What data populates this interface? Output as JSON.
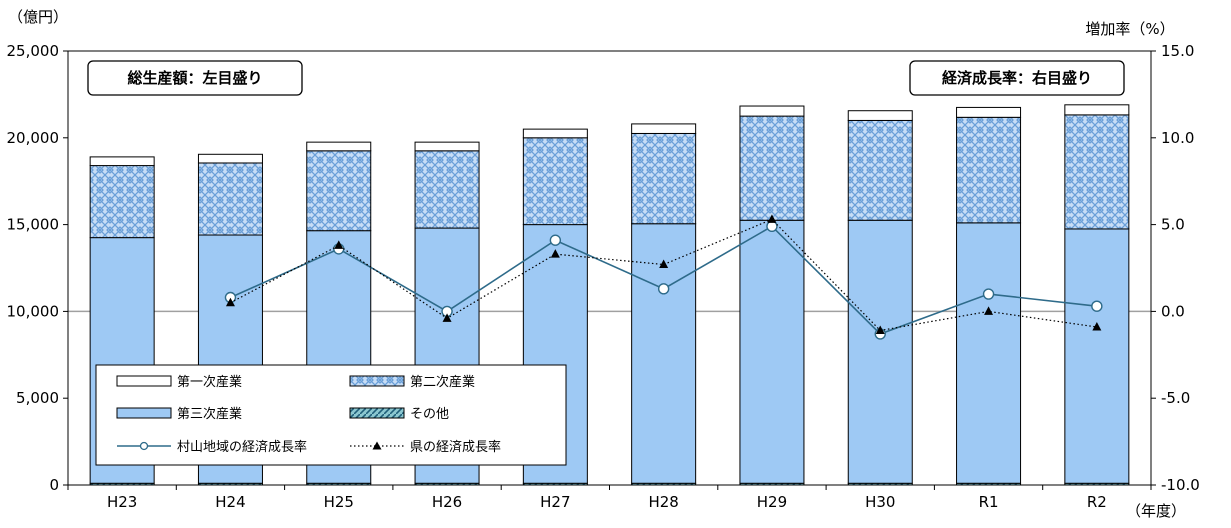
{
  "chart_data": {
    "type": "bar",
    "left_axis_unit": "（億円）",
    "right_axis_label": "増加率（%）",
    "x_unit": "（年度）",
    "categories": [
      "H23",
      "H24",
      "H25",
      "H26",
      "H27",
      "H28",
      "H29",
      "H30",
      "R1",
      "R2"
    ],
    "y_left": {
      "min": 0,
      "max": 25000,
      "step": 5000,
      "tick_labels": [
        "0",
        "5,000",
        "10,000",
        "15,000",
        "20,000",
        "25,000"
      ]
    },
    "y_right": {
      "min": -10.0,
      "max": 15.0,
      "step": 5.0,
      "tick_labels": [
        "-10.0",
        "-5.0",
        "0.0",
        "5.0",
        "10.0",
        "15.0"
      ]
    },
    "annotations": {
      "left_box": "総生産額：左目盛り",
      "right_box": "経済成長率：右目盛り"
    },
    "stack_order": [
      "その他",
      "第三次産業",
      "第二次産業",
      "第一次産業"
    ],
    "series": [
      {
        "name": "第一次産業",
        "kind": "bar",
        "pattern": "white",
        "values": [
          500,
          500,
          500,
          500,
          500,
          550,
          580,
          560,
          570,
          580
        ]
      },
      {
        "name": "第二次産業",
        "kind": "bar",
        "pattern": "crosshatch",
        "values": [
          4150,
          4150,
          4600,
          4450,
          5000,
          5200,
          6000,
          5750,
          6080,
          6570
        ]
      },
      {
        "name": "第三次産業",
        "kind": "bar",
        "pattern": "light-blue",
        "values": [
          14150,
          14300,
          14550,
          14700,
          14900,
          14950,
          15150,
          15150,
          15000,
          14650
        ]
      },
      {
        "name": "その他",
        "kind": "bar",
        "pattern": "diagonal",
        "values": [
          100,
          100,
          100,
          100,
          100,
          100,
          100,
          100,
          100,
          100
        ]
      },
      {
        "name": "村山地域の経済成長率",
        "kind": "line",
        "marker": "circle",
        "color": "#2e6b8a",
        "values": [
          null,
          0.8,
          3.6,
          0.0,
          4.1,
          1.3,
          4.9,
          -1.3,
          1.0,
          0.3
        ]
      },
      {
        "name": "県の経済成長率",
        "kind": "line",
        "marker": "triangle",
        "dash": "dotted",
        "color": "#000000",
        "values": [
          null,
          0.5,
          3.8,
          -0.4,
          3.3,
          2.7,
          5.3,
          -1.1,
          0.0,
          -0.9
        ]
      }
    ],
    "legend_placement": "bottom-left",
    "colors": {
      "tertiary": "#9ec9f4",
      "secondary": "#c7ddf6",
      "hatch": "#6a9fd8",
      "line_region": "#2e6b8a",
      "zero_line": "#a0a0a0"
    }
  }
}
